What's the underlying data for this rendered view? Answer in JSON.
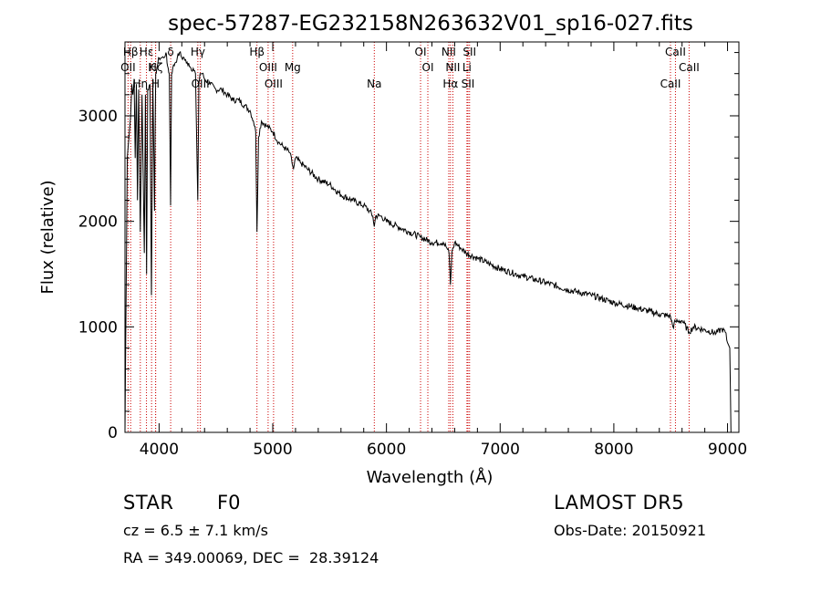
{
  "chart_data": {
    "type": "line",
    "title": "spec-57287-EG232158N263632V01_sp16-027.fits",
    "xlabel": "Wavelength (Å)",
    "ylabel": "Flux (relative)",
    "xlim": [
      3700,
      9100
    ],
    "ylim": [
      0,
      3700
    ],
    "xticks": [
      4000,
      5000,
      6000,
      7000,
      8000,
      9000
    ],
    "yticks": [
      0,
      1000,
      2000,
      3000
    ],
    "grid": false,
    "series": [
      {
        "x": [
          3700,
          3720,
          3735,
          3750,
          3760,
          3770,
          3780,
          3790,
          3800,
          3810,
          3820,
          3835,
          3850,
          3870,
          3880,
          3890,
          3900,
          3920,
          3933,
          3945,
          3960,
          3970,
          3980,
          3990,
          4000,
          4020,
          4040,
          4060,
          4070,
          4080,
          4090,
          4101,
          4110,
          4120,
          4140,
          4160,
          4180,
          4200,
          4220,
          4240,
          4260,
          4280,
          4300,
          4320,
          4340,
          4350,
          4360,
          4380,
          4400,
          4450,
          4500,
          4550,
          4600,
          4650,
          4700,
          4750,
          4800,
          4830,
          4850,
          4861,
          4875,
          4900,
          4950,
          5000,
          5050,
          5100,
          5150,
          5170,
          5183,
          5200,
          5250,
          5300,
          5400,
          5500,
          5600,
          5700,
          5800,
          5850,
          5880,
          5893,
          5905,
          5950,
          6000,
          6100,
          6200,
          6300,
          6400,
          6500,
          6530,
          6550,
          6563,
          6575,
          6600,
          6650,
          6700,
          6800,
          6900,
          7000,
          7200,
          7400,
          7600,
          7800,
          8000,
          8200,
          8400,
          8498,
          8520,
          8542,
          8560,
          8600,
          8662,
          8700,
          8800,
          8900,
          8950,
          8980,
          9000,
          9020,
          9030
        ],
        "y": [
          0,
          2600,
          2800,
          3000,
          3300,
          3200,
          3350,
          2600,
          3300,
          2200,
          3250,
          1900,
          3200,
          1700,
          3200,
          1500,
          3250,
          3300,
          1300,
          3350,
          2100,
          3400,
          3450,
          3500,
          3550,
          3550,
          3550,
          3600,
          3500,
          3450,
          3400,
          2150,
          3400,
          3450,
          3500,
          3550,
          3600,
          3550,
          3550,
          3500,
          3500,
          3450,
          3450,
          3400,
          2200,
          3300,
          3400,
          3400,
          3350,
          3300,
          3250,
          3250,
          3200,
          3150,
          3150,
          3100,
          3050,
          2950,
          2850,
          1900,
          2800,
          2950,
          2900,
          2850,
          2750,
          2700,
          2650,
          2550,
          2500,
          2600,
          2550,
          2500,
          2400,
          2350,
          2250,
          2200,
          2150,
          2100,
          2050,
          1950,
          2050,
          2050,
          2000,
          1950,
          1900,
          1850,
          1800,
          1800,
          1750,
          1700,
          1400,
          1700,
          1800,
          1750,
          1700,
          1650,
          1600,
          1550,
          1480,
          1420,
          1350,
          1300,
          1230,
          1180,
          1120,
          1100,
          1000,
          1050,
          1050,
          1060,
          950,
          1000,
          970,
          940,
          980,
          950,
          850,
          800,
          0
        ]
      }
    ],
    "lines": [
      {
        "label": "Hβ",
        "x": 3750
      },
      {
        "label": "K",
        "x": 3934
      },
      {
        "label": "H",
        "x": 3969
      },
      {
        "label": "δ",
        "x": 4102
      },
      {
        "label": "OII",
        "x": 3727
      },
      {
        "label": "Hη",
        "x": 3835
      },
      {
        "label": "Hε",
        "x": 3889
      },
      {
        "label": "Hζ",
        "x": 3970
      },
      {
        "label": "OIII",
        "x": 4363
      },
      {
        "label": "Hγ",
        "x": 4341
      },
      {
        "label": "OIII",
        "x": 4959
      },
      {
        "label": "OIII",
        "x": 5007
      },
      {
        "label": "Hβ",
        "x": 4861
      },
      {
        "label": "Mg",
        "x": 5175
      },
      {
        "label": "Na",
        "x": 5893
      },
      {
        "label": "OI",
        "x": 6300
      },
      {
        "label": "OI",
        "x": 6364
      },
      {
        "label": "Hα",
        "x": 6563
      },
      {
        "label": "NII",
        "x": 6548
      },
      {
        "label": "NII",
        "x": 6584
      },
      {
        "label": "SII",
        "x": 6717
      },
      {
        "label": "SII",
        "x": 6731
      },
      {
        "label": "Li",
        "x": 6708
      },
      {
        "label": "CaII",
        "x": 8498
      },
      {
        "label": "CaII",
        "x": 8542
      },
      {
        "label": "CaII",
        "x": 8662
      }
    ]
  },
  "labels": {
    "object_class": "STAR",
    "object_type": "F0",
    "survey": "LAMOST DR5",
    "cz": "cz = 6.5 ± 7.1 km/s",
    "obs_date": "Obs-Date: 20150921",
    "radec": "RA = 349.00069, DEC =  28.39124"
  },
  "colors": {
    "spectrum": "#000000",
    "line_marker": "#cc0000",
    "axes": "#000000"
  }
}
